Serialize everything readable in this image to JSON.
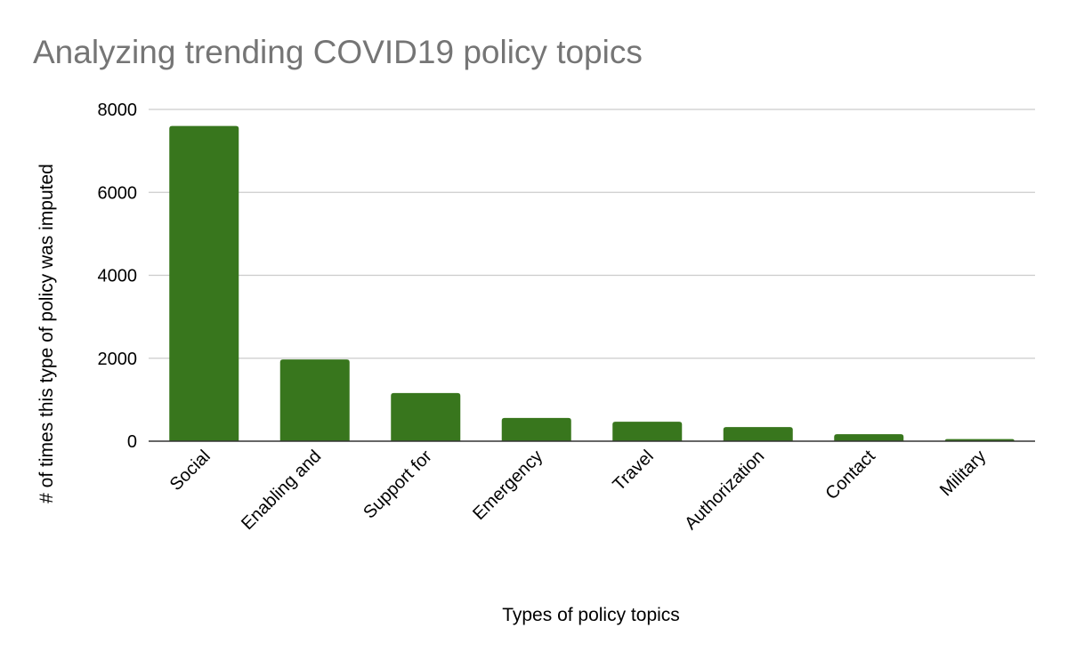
{
  "chart_data": {
    "type": "bar",
    "title": "Analyzing trending COVID19 policy topics",
    "xlabel": "Types of policy topics",
    "ylabel": "# of times this type of policy was imputed",
    "categories": [
      "Social",
      "Enabling and",
      "Support for",
      "Emergency",
      "Travel",
      "Authorization",
      "Contact",
      "Military"
    ],
    "values": [
      7600,
      1970,
      1160,
      560,
      470,
      340,
      170,
      50
    ],
    "ylim": [
      0,
      8000
    ],
    "yticks": [
      0,
      2000,
      4000,
      6000,
      8000
    ],
    "grid": true,
    "legend": "none",
    "bar_color": "#38761d",
    "gridline_color": "#cccccc",
    "baseline_color": "#333333"
  }
}
